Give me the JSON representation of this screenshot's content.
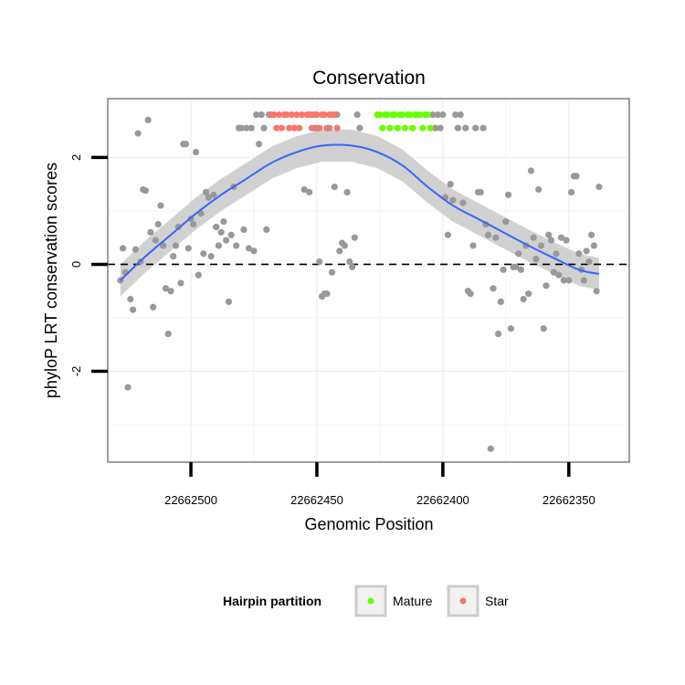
{
  "chart_data": {
    "type": "scatter",
    "title": "Conservation",
    "xlabel": "Genomic Position",
    "ylabel": "phyloP LRT conservation scores",
    "x_reversed": true,
    "xlim": [
      22662533,
      22662326
    ],
    "ylim": [
      -3.7,
      3.1
    ],
    "x_ticks": [
      22662500,
      22662450,
      22662400,
      22662350
    ],
    "x_tick_labels": [
      "22662500",
      "22662450",
      "22662400",
      "22662350"
    ],
    "y_ticks": [
      -2,
      0,
      2
    ],
    "y_tick_labels": [
      "-2",
      "0",
      "2"
    ],
    "reference_line": {
      "y": 0,
      "style": "dashed"
    },
    "grid": true,
    "colors": {
      "background_points": "#999999",
      "mature": "#66ff00",
      "star": "#f8766d",
      "smooth_line": "#3366ff",
      "confidence_band": "#cccccc",
      "panel_border": "#7f7f7f",
      "grid": "#f0f0f0"
    },
    "series": [
      {
        "name": "Background",
        "points": [
          [
            22662528,
            -0.3
          ],
          [
            22662527,
            0.3
          ],
          [
            22662526,
            -0.15
          ],
          [
            22662525,
            -2.3
          ],
          [
            22662524,
            -0.65
          ],
          [
            22662523,
            -0.85
          ],
          [
            22662522,
            0.28
          ],
          [
            22662521,
            2.45
          ],
          [
            22662520,
            0.05
          ],
          [
            22662519,
            1.4
          ],
          [
            22662518,
            1.38
          ],
          [
            22662517,
            2.7
          ],
          [
            22662516,
            0.6
          ],
          [
            22662515,
            -0.8
          ],
          [
            22662514,
            0.45
          ],
          [
            22662513,
            0.75
          ],
          [
            22662512,
            1.1
          ],
          [
            22662511,
            0.35
          ],
          [
            22662510,
            -0.45
          ],
          [
            22662509,
            -1.3
          ],
          [
            22662508,
            -0.5
          ],
          [
            22662507,
            0.15
          ],
          [
            22662506,
            0.35
          ],
          [
            22662505,
            0.7
          ],
          [
            22662504,
            -0.35
          ],
          [
            22662503,
            2.25
          ],
          [
            22662502,
            2.25
          ],
          [
            22662501,
            0.3
          ],
          [
            22662500,
            0.85
          ],
          [
            22662499,
            0.75
          ],
          [
            22662498,
            2.1
          ],
          [
            22662497,
            -0.2
          ],
          [
            22662496,
            0.95
          ],
          [
            22662495,
            0.2
          ],
          [
            22662494,
            1.35
          ],
          [
            22662493,
            1.25
          ],
          [
            22662492,
            0.15
          ],
          [
            22662491,
            1.3
          ],
          [
            22662490,
            0.7
          ],
          [
            22662489,
            0.35
          ],
          [
            22662488,
            0.6
          ],
          [
            22662487,
            0.8
          ],
          [
            22662486,
            0.45
          ],
          [
            22662485,
            -0.7
          ],
          [
            22662484,
            0.55
          ],
          [
            22662483,
            1.45
          ],
          [
            22662482,
            0.35
          ],
          [
            22662481,
            2.55
          ],
          [
            22662480,
            2.55
          ],
          [
            22662479,
            0.65
          ],
          [
            22662478,
            2.55
          ],
          [
            22662477,
            0.3
          ],
          [
            22662476,
            2.55
          ],
          [
            22662475,
            0.25
          ],
          [
            22662474,
            2.8
          ],
          [
            22662473,
            2.25
          ],
          [
            22662472,
            2.8
          ],
          [
            22662471,
            2.55
          ],
          [
            22662470,
            0.65
          ],
          [
            22662469,
            2.8
          ],
          [
            22662455,
            1.4
          ],
          [
            22662453,
            1.35
          ],
          [
            22662452,
            2.8
          ],
          [
            22662451,
            2.55
          ],
          [
            22662450,
            2.55
          ],
          [
            22662449,
            0.05
          ],
          [
            22662448,
            -0.6
          ],
          [
            22662447,
            -0.55
          ],
          [
            22662446,
            -0.55
          ],
          [
            22662445,
            2.55
          ],
          [
            22662444,
            -0.15
          ],
          [
            22662443,
            1.45
          ],
          [
            22662442,
            2.8
          ],
          [
            22662441,
            0.25
          ],
          [
            22662440,
            0.4
          ],
          [
            22662439,
            0.35
          ],
          [
            22662438,
            1.35
          ],
          [
            22662437,
            0.05
          ],
          [
            22662436,
            -0.05
          ],
          [
            22662435,
            0.5
          ],
          [
            22662434,
            2.8
          ],
          [
            22662433,
            2.55
          ],
          [
            22662404,
            2.8
          ],
          [
            22662403,
            2.55
          ],
          [
            22662402,
            2.8
          ],
          [
            22662401,
            2.55
          ],
          [
            22662400,
            2.8
          ],
          [
            22662399,
            1.25
          ],
          [
            22662398,
            0.55
          ],
          [
            22662397,
            1.5
          ],
          [
            22662396,
            1.2
          ],
          [
            22662395,
            2.8
          ],
          [
            22662394,
            2.55
          ],
          [
            22662393,
            2.8
          ],
          [
            22662392,
            1.15
          ],
          [
            22662391,
            2.55
          ],
          [
            22662390,
            -0.5
          ],
          [
            22662389,
            -0.55
          ],
          [
            22662388,
            0.35
          ],
          [
            22662387,
            2.55
          ],
          [
            22662386,
            1.35
          ],
          [
            22662385,
            1.35
          ],
          [
            22662384,
            2.55
          ],
          [
            22662383,
            0.75
          ],
          [
            22662382,
            0.55
          ],
          [
            22662381,
            -3.45
          ],
          [
            22662380,
            -0.45
          ],
          [
            22662379,
            0.5
          ],
          [
            22662378,
            -1.3
          ],
          [
            22662377,
            -0.7
          ],
          [
            22662376,
            -0.1
          ],
          [
            22662375,
            0.8
          ],
          [
            22662374,
            1.3
          ],
          [
            22662373,
            -1.2
          ],
          [
            22662372,
            -0.05
          ],
          [
            22662371,
            -0.05
          ],
          [
            22662370,
            0.2
          ],
          [
            22662369,
            -0.1
          ],
          [
            22662368,
            -0.65
          ],
          [
            22662367,
            0.35
          ],
          [
            22662366,
            -0.55
          ],
          [
            22662365,
            1.75
          ],
          [
            22662364,
            0.5
          ],
          [
            22662363,
            0.1
          ],
          [
            22662362,
            1.4
          ],
          [
            22662361,
            0.35
          ],
          [
            22662360,
            -1.2
          ],
          [
            22662359,
            -0.4
          ],
          [
            22662358,
            0.55
          ],
          [
            22662357,
            0.45
          ],
          [
            22662356,
            -0.15
          ],
          [
            22662355,
            0.2
          ],
          [
            22662354,
            -0.2
          ],
          [
            22662353,
            0.5
          ],
          [
            22662352,
            -0.3
          ],
          [
            22662351,
            0.45
          ],
          [
            22662350,
            -0.3
          ],
          [
            22662349,
            1.35
          ],
          [
            22662348,
            1.65
          ],
          [
            22662347,
            1.65
          ],
          [
            22662346,
            0.2
          ],
          [
            22662345,
            -0.1
          ],
          [
            22662344,
            -0.3
          ],
          [
            22662343,
            0.25
          ],
          [
            22662342,
            0.05
          ],
          [
            22662341,
            0.55
          ],
          [
            22662340,
            0.35
          ],
          [
            22662339,
            -0.5
          ],
          [
            22662338,
            1.45
          ]
        ]
      },
      {
        "name": "Star",
        "points": [
          [
            22662468,
            2.8
          ],
          [
            22662467,
            2.8
          ],
          [
            22662466,
            2.55
          ],
          [
            22662465,
            2.8
          ],
          [
            22662464,
            2.55
          ],
          [
            22662463,
            2.8
          ],
          [
            22662462,
            2.8
          ],
          [
            22662461,
            2.55
          ],
          [
            22662460,
            2.8
          ],
          [
            22662459,
            2.55
          ],
          [
            22662458,
            2.8
          ],
          [
            22662457,
            2.55
          ],
          [
            22662456,
            2.8
          ],
          [
            22662454,
            2.8
          ],
          [
            22662453,
            2.8
          ],
          [
            22662452,
            2.55
          ],
          [
            22662451,
            2.8
          ],
          [
            22662450,
            2.8
          ],
          [
            22662449,
            2.55
          ],
          [
            22662448,
            2.8
          ],
          [
            22662447,
            2.8
          ],
          [
            22662446,
            2.55
          ],
          [
            22662445,
            2.8
          ],
          [
            22662444,
            2.8
          ],
          [
            22662443,
            2.8
          ],
          [
            22662442,
            2.55
          ]
        ]
      },
      {
        "name": "Mature",
        "points": [
          [
            22662426,
            2.8
          ],
          [
            22662425,
            2.8
          ],
          [
            22662424,
            2.55
          ],
          [
            22662423,
            2.8
          ],
          [
            22662422,
            2.8
          ],
          [
            22662421,
            2.55
          ],
          [
            22662420,
            2.8
          ],
          [
            22662419,
            2.8
          ],
          [
            22662418,
            2.55
          ],
          [
            22662417,
            2.8
          ],
          [
            22662416,
            2.8
          ],
          [
            22662415,
            2.55
          ],
          [
            22662414,
            2.8
          ],
          [
            22662413,
            2.8
          ],
          [
            22662412,
            2.55
          ],
          [
            22662411,
            2.8
          ],
          [
            22662410,
            2.8
          ],
          [
            22662409,
            2.8
          ],
          [
            22662408,
            2.55
          ],
          [
            22662407,
            2.8
          ],
          [
            22662406,
            2.8
          ],
          [
            22662405,
            2.55
          ]
        ]
      }
    ],
    "smooth": {
      "method": "loess",
      "x": [
        22662528,
        22662518,
        22662508,
        22662498,
        22662488,
        22662478,
        22662468,
        22662458,
        22662448,
        22662436,
        22662426,
        22662416,
        22662406,
        22662396,
        22662386,
        22662376,
        22662366,
        22662356,
        22662346,
        22662338
      ],
      "y": [
        -0.3,
        0.15,
        0.55,
        0.95,
        1.3,
        1.6,
        1.9,
        2.1,
        2.22,
        2.22,
        2.1,
        1.85,
        1.45,
        1.1,
        0.85,
        0.6,
        0.35,
        0.12,
        -0.1,
        -0.18
      ],
      "band": 0.3
    },
    "legend": {
      "title": "Hairpin partition",
      "position": "bottom",
      "entries": [
        {
          "label": "Mature",
          "color": "#66ff00"
        },
        {
          "label": "Star",
          "color": "#f8766d"
        }
      ]
    }
  }
}
